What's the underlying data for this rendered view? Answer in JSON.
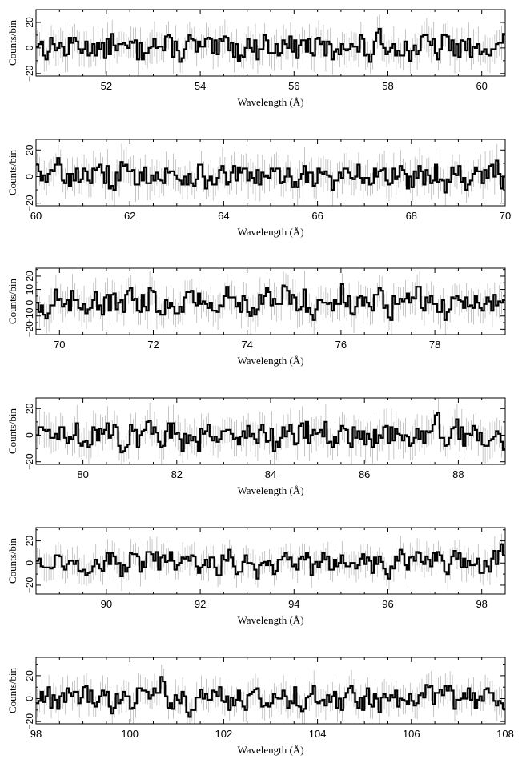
{
  "chart_data": [
    {
      "type": "line",
      "style": "histogram-step",
      "xlabel": "Wavelength (Å)",
      "ylabel": "Counts/bin",
      "xlim": [
        50.5,
        60.5
      ],
      "ylim": [
        -22,
        30
      ],
      "xticks": [
        "52",
        "54",
        "56",
        "58",
        "60"
      ],
      "yticks": [
        "−20",
        "0",
        "20"
      ],
      "grid": false,
      "legend": "none",
      "bins": 200,
      "series": [
        {
          "values": [
            8,
            -3,
            6,
            -5,
            9,
            -2,
            4,
            -7,
            10,
            -4,
            3,
            -6,
            11,
            -2,
            5,
            -8,
            7,
            -1,
            2,
            -5,
            12,
            -6,
            4,
            -3,
            9,
            -9,
            14,
            -4,
            6,
            -2,
            3,
            -7,
            8,
            -3,
            5,
            -10,
            13,
            -1,
            4,
            -6,
            2,
            7,
            -5,
            9,
            -3,
            4,
            -8,
            6,
            -2,
            10
          ]
        }
      ]
    },
    {
      "type": "line",
      "style": "histogram-step",
      "xlabel": "Wavelength (Å)",
      "ylabel": "Counts/bin",
      "xlim": [
        60,
        70
      ],
      "ylim": [
        -22,
        28
      ],
      "xticks": [
        "60",
        "62",
        "64",
        "66",
        "68",
        "70"
      ],
      "yticks": [
        "−20",
        "0",
        "20"
      ],
      "grid": false,
      "legend": "none",
      "bins": 200,
      "series": [
        {
          "values": [
            20,
            -12,
            15,
            3,
            -6,
            9,
            -2,
            5,
            -8,
            12,
            -4,
            6,
            2,
            -3,
            4,
            1,
            -2,
            3,
            -5,
            2,
            -1,
            4,
            -3,
            2,
            -6,
            3,
            1,
            -4,
            6,
            -2,
            5,
            -9,
            7,
            -3,
            4,
            -6,
            9,
            -4,
            8,
            -10,
            12,
            -3,
            6,
            -8,
            10,
            -5,
            7,
            -2,
            11,
            -9
          ]
        }
      ]
    },
    {
      "type": "line",
      "style": "histogram-step",
      "xlabel": "Wavelength (Å)",
      "ylabel": "Counts/bin",
      "xlim": [
        69.5,
        79.5
      ],
      "ylim": [
        -24,
        26
      ],
      "xticks": [
        "70",
        "72",
        "74",
        "76",
        "78"
      ],
      "yticks": [
        "−20",
        "−10",
        "0",
        "10",
        "20"
      ],
      "grid": false,
      "legend": "none",
      "bins": 200,
      "series": [
        {
          "values": [
            5,
            -15,
            8,
            -10,
            6,
            -4,
            9,
            -6,
            3,
            -8,
            11,
            -3,
            7,
            -9,
            4,
            -5,
            12,
            -2,
            6,
            -7,
            10,
            -4,
            3,
            -11,
            8,
            -6,
            13,
            -1,
            5,
            -9,
            7,
            -3,
            11,
            -8,
            4,
            -6,
            9,
            -12,
            6,
            -2,
            10,
            -5,
            3,
            -14,
            7,
            -4,
            8,
            -3,
            5,
            -9
          ]
        }
      ]
    },
    {
      "type": "line",
      "style": "histogram-step",
      "xlabel": "Wavelength (Å)",
      "ylabel": "Counts/bin",
      "xlim": [
        79,
        89
      ],
      "ylim": [
        -22,
        28
      ],
      "xticks": [
        "80",
        "82",
        "84",
        "86",
        "88"
      ],
      "yticks": [
        "−20",
        "0",
        "20"
      ],
      "grid": false,
      "legend": "none",
      "bins": 200,
      "series": [
        {
          "values": [
            4,
            -8,
            10,
            -5,
            7,
            -12,
            6,
            -3,
            9,
            -10,
            5,
            -6,
            11,
            -4,
            8,
            -9,
            3,
            -7,
            12,
            -2,
            6,
            -11,
            9,
            -5,
            4,
            -8,
            10,
            -3,
            7,
            -6,
            11,
            -9,
            5,
            -4,
            8,
            -10,
            6,
            -2,
            9,
            -7,
            3,
            -5,
            18,
            -12,
            7,
            -4,
            10,
            -6,
            3,
            -6
          ]
        }
      ]
    },
    {
      "type": "line",
      "style": "histogram-step",
      "xlabel": "Wavelength (Å)",
      "ylabel": "Counts/bin",
      "xlim": [
        88.5,
        98.5
      ],
      "ylim": [
        -28,
        32
      ],
      "xticks": [
        "90",
        "92",
        "94",
        "96",
        "98"
      ],
      "yticks": [
        "−20",
        "0",
        "20"
      ],
      "grid": false,
      "legend": "none",
      "bins": 200,
      "series": [
        {
          "values": [
            6,
            -10,
            12,
            -6,
            9,
            -14,
            8,
            -4,
            11,
            -12,
            5,
            -8,
            14,
            -3,
            7,
            -10,
            10,
            -5,
            4,
            -11,
            13,
            -6,
            8,
            -14,
            6,
            -9,
            18,
            -4,
            10,
            -12,
            7,
            -5,
            12,
            -10,
            9,
            -6,
            4,
            -13,
            11,
            -7,
            15,
            -3,
            8,
            -16,
            10,
            -6,
            5,
            -9,
            7,
            18
          ]
        }
      ]
    },
    {
      "type": "line",
      "style": "histogram-step",
      "xlabel": "Wavelength (Å)",
      "ylabel": "Counts/bin",
      "xlim": [
        98,
        108
      ],
      "ylim": [
        -22,
        36
      ],
      "xticks": [
        "98",
        "100",
        "102",
        "104",
        "106",
        "108"
      ],
      "yticks": [
        "−20",
        "0",
        "20"
      ],
      "grid": false,
      "legend": "none",
      "bins": 200,
      "series": [
        {
          "values": [
            -5,
            8,
            -10,
            6,
            -3,
            12,
            -8,
            5,
            -12,
            10,
            -4,
            7,
            -6,
            26,
            -9,
            4,
            -14,
            9,
            -5,
            11,
            -7,
            3,
            -10,
            8,
            -6,
            12,
            -4,
            6,
            -15,
            10,
            -3,
            7,
            -9,
            13,
            -5,
            4,
            -11,
            9,
            -6,
            5,
            -8,
            11,
            -3,
            16,
            -10,
            7,
            -5,
            9,
            -4,
            -9
          ]
        }
      ]
    }
  ]
}
